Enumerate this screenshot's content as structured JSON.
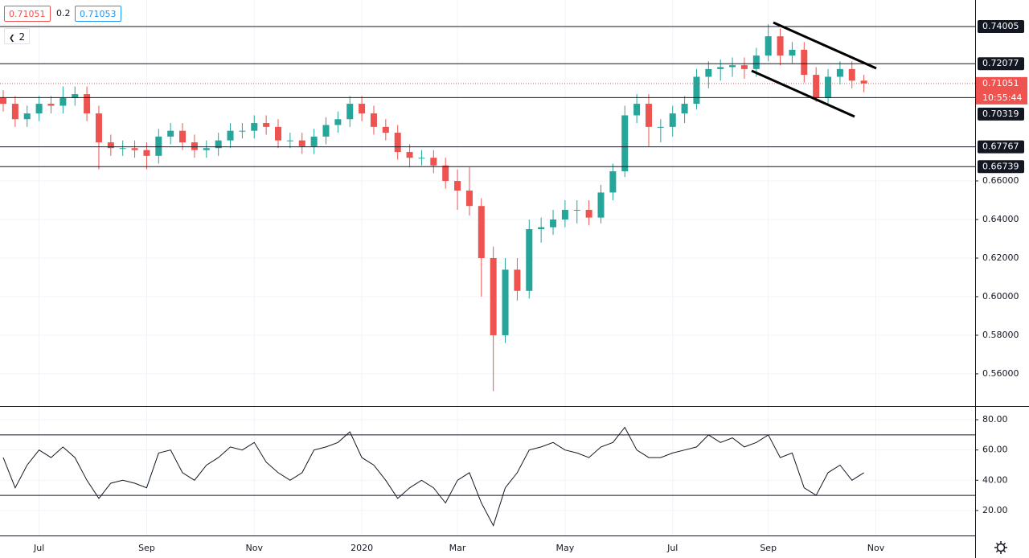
{
  "header": {
    "bid": "0.71051",
    "spread": "0.2",
    "ask": "0.71053",
    "interval": "2"
  },
  "chart_data": [
    {
      "type": "candlestick",
      "categories": [
        null,
        null,
        null,
        "Jul",
        null,
        null,
        null,
        null,
        null,
        null,
        null,
        null,
        "Sep",
        null,
        null,
        null,
        null,
        null,
        null,
        null,
        null,
        "Nov",
        null,
        null,
        null,
        null,
        null,
        null,
        null,
        null,
        "2020",
        null,
        null,
        null,
        null,
        null,
        null,
        null,
        "Mar",
        null,
        null,
        null,
        null,
        null,
        null,
        null,
        null,
        "May",
        null,
        null,
        null,
        null,
        null,
        null,
        null,
        null,
        "Jul",
        null,
        null,
        null,
        null,
        null,
        null,
        null,
        "Sep",
        null,
        null,
        null,
        null,
        null,
        null,
        null,
        null,
        "Nov"
      ],
      "open": [
        0.703,
        0.7,
        0.692,
        0.695,
        0.7,
        0.699,
        0.703,
        0.705,
        0.695,
        0.68,
        0.677,
        0.677,
        0.676,
        0.673,
        0.683,
        0.686,
        0.68,
        0.676,
        0.677,
        0.681,
        0.686,
        0.686,
        0.69,
        0.688,
        0.681,
        0.681,
        0.678,
        0.683,
        0.689,
        0.692,
        0.7,
        0.695,
        0.688,
        0.685,
        0.675,
        0.672,
        0.672,
        0.668,
        0.66,
        0.655,
        0.647,
        0.62,
        0.58,
        0.614,
        0.603,
        0.635,
        0.636,
        0.64,
        0.645,
        0.645,
        0.641,
        0.654,
        0.665,
        0.694,
        0.7,
        0.688,
        0.688,
        0.695,
        0.7,
        0.714,
        0.718,
        0.719,
        0.72,
        0.718,
        0.725,
        0.735,
        0.725,
        0.728,
        0.715,
        0.703,
        0.714,
        0.718,
        0.712,
        null
      ],
      "high": [
        0.707,
        0.704,
        0.699,
        0.704,
        0.704,
        0.709,
        0.709,
        0.709,
        0.699,
        0.684,
        0.681,
        0.681,
        0.68,
        0.687,
        0.69,
        0.69,
        0.684,
        0.681,
        0.685,
        0.69,
        0.69,
        0.694,
        0.694,
        0.692,
        0.685,
        0.685,
        0.687,
        0.693,
        0.696,
        0.704,
        0.704,
        0.699,
        0.692,
        0.689,
        0.679,
        0.676,
        0.676,
        0.672,
        0.666,
        0.667,
        0.651,
        0.626,
        0.62,
        0.62,
        0.64,
        0.641,
        0.645,
        0.65,
        0.65,
        0.65,
        0.658,
        0.669,
        0.699,
        0.705,
        0.705,
        0.692,
        0.699,
        0.704,
        0.718,
        0.722,
        0.723,
        0.724,
        0.724,
        0.729,
        0.7413,
        0.739,
        0.732,
        0.732,
        0.719,
        0.718,
        0.722,
        0.722,
        0.715,
        null
      ],
      "low": [
        0.696,
        0.688,
        0.688,
        0.691,
        0.695,
        0.695,
        0.699,
        0.691,
        0.666,
        0.673,
        0.673,
        0.672,
        0.666,
        0.669,
        0.679,
        0.676,
        0.672,
        0.672,
        0.673,
        0.677,
        0.682,
        0.682,
        0.684,
        0.677,
        0.677,
        0.674,
        0.674,
        0.679,
        0.685,
        0.688,
        0.691,
        0.684,
        0.681,
        0.671,
        0.667,
        0.668,
        0.664,
        0.656,
        0.645,
        0.642,
        0.6,
        0.551,
        0.576,
        0.598,
        0.599,
        0.628,
        0.632,
        0.636,
        0.638,
        0.637,
        0.638,
        0.65,
        0.662,
        0.69,
        0.678,
        0.68,
        0.683,
        0.69,
        0.697,
        0.708,
        0.712,
        0.714,
        0.713,
        0.714,
        0.722,
        0.72,
        0.721,
        0.711,
        0.701,
        0.7,
        0.71,
        0.708,
        0.706,
        null
      ],
      "close": [
        0.7,
        0.692,
        0.695,
        0.7,
        0.699,
        0.703,
        0.705,
        0.695,
        0.68,
        0.677,
        0.677,
        0.676,
        0.673,
        0.683,
        0.686,
        0.68,
        0.676,
        0.677,
        0.681,
        0.686,
        0.686,
        0.69,
        0.688,
        0.681,
        0.681,
        0.678,
        0.683,
        0.689,
        0.692,
        0.7,
        0.695,
        0.688,
        0.685,
        0.675,
        0.672,
        0.672,
        0.668,
        0.66,
        0.655,
        0.647,
        0.62,
        0.58,
        0.614,
        0.603,
        0.635,
        0.636,
        0.64,
        0.645,
        0.645,
        0.641,
        0.654,
        0.665,
        0.694,
        0.7,
        0.688,
        0.688,
        0.695,
        0.7,
        0.714,
        0.718,
        0.719,
        0.72,
        0.718,
        0.725,
        0.735,
        0.725,
        0.728,
        0.715,
        0.703,
        0.714,
        0.718,
        0.712,
        0.7105,
        null
      ],
      "up_color": "#26a69a",
      "down_color": "#ef5350",
      "ylim": [
        0.5433,
        0.7538
      ],
      "yticks": [
        {
          "value": 0.66,
          "label": "0.66000"
        },
        {
          "value": 0.64,
          "label": "0.64000"
        },
        {
          "value": 0.62,
          "label": "0.62000"
        },
        {
          "value": 0.6,
          "label": "0.60000"
        },
        {
          "value": 0.58,
          "label": "0.58000"
        },
        {
          "value": 0.56,
          "label": "0.56000"
        }
      ],
      "levels": [
        0.74005,
        0.72077,
        0.70319,
        0.67767,
        0.66739
      ],
      "last_price": 0.71051,
      "countdown": "10:55:44",
      "grid": true
    },
    {
      "type": "line",
      "values": [
        55,
        35,
        50,
        60,
        55,
        62,
        55,
        40,
        28,
        38,
        40,
        38,
        35,
        58,
        60,
        45,
        40,
        50,
        55,
        62,
        60,
        65,
        52,
        45,
        40,
        45,
        60,
        62,
        65,
        72,
        55,
        50,
        40,
        28,
        35,
        40,
        35,
        25,
        40,
        45,
        25,
        10,
        35,
        45,
        60,
        62,
        65,
        60,
        58,
        55,
        62,
        65,
        75,
        60,
        55,
        55,
        58,
        60,
        62,
        70,
        65,
        68,
        62,
        65,
        70,
        55,
        58,
        35,
        30,
        45,
        50,
        40,
        45,
        null
      ],
      "color": "#131722",
      "ylim": [
        4,
        88
      ],
      "yticks": [
        {
          "value": 80,
          "label": "80.00"
        },
        {
          "value": 60,
          "label": "60.00"
        },
        {
          "value": 40,
          "label": "40.00"
        },
        {
          "value": 20,
          "label": "20.00"
        }
      ],
      "bands": [
        70,
        30
      ],
      "grid": true
    }
  ]
}
